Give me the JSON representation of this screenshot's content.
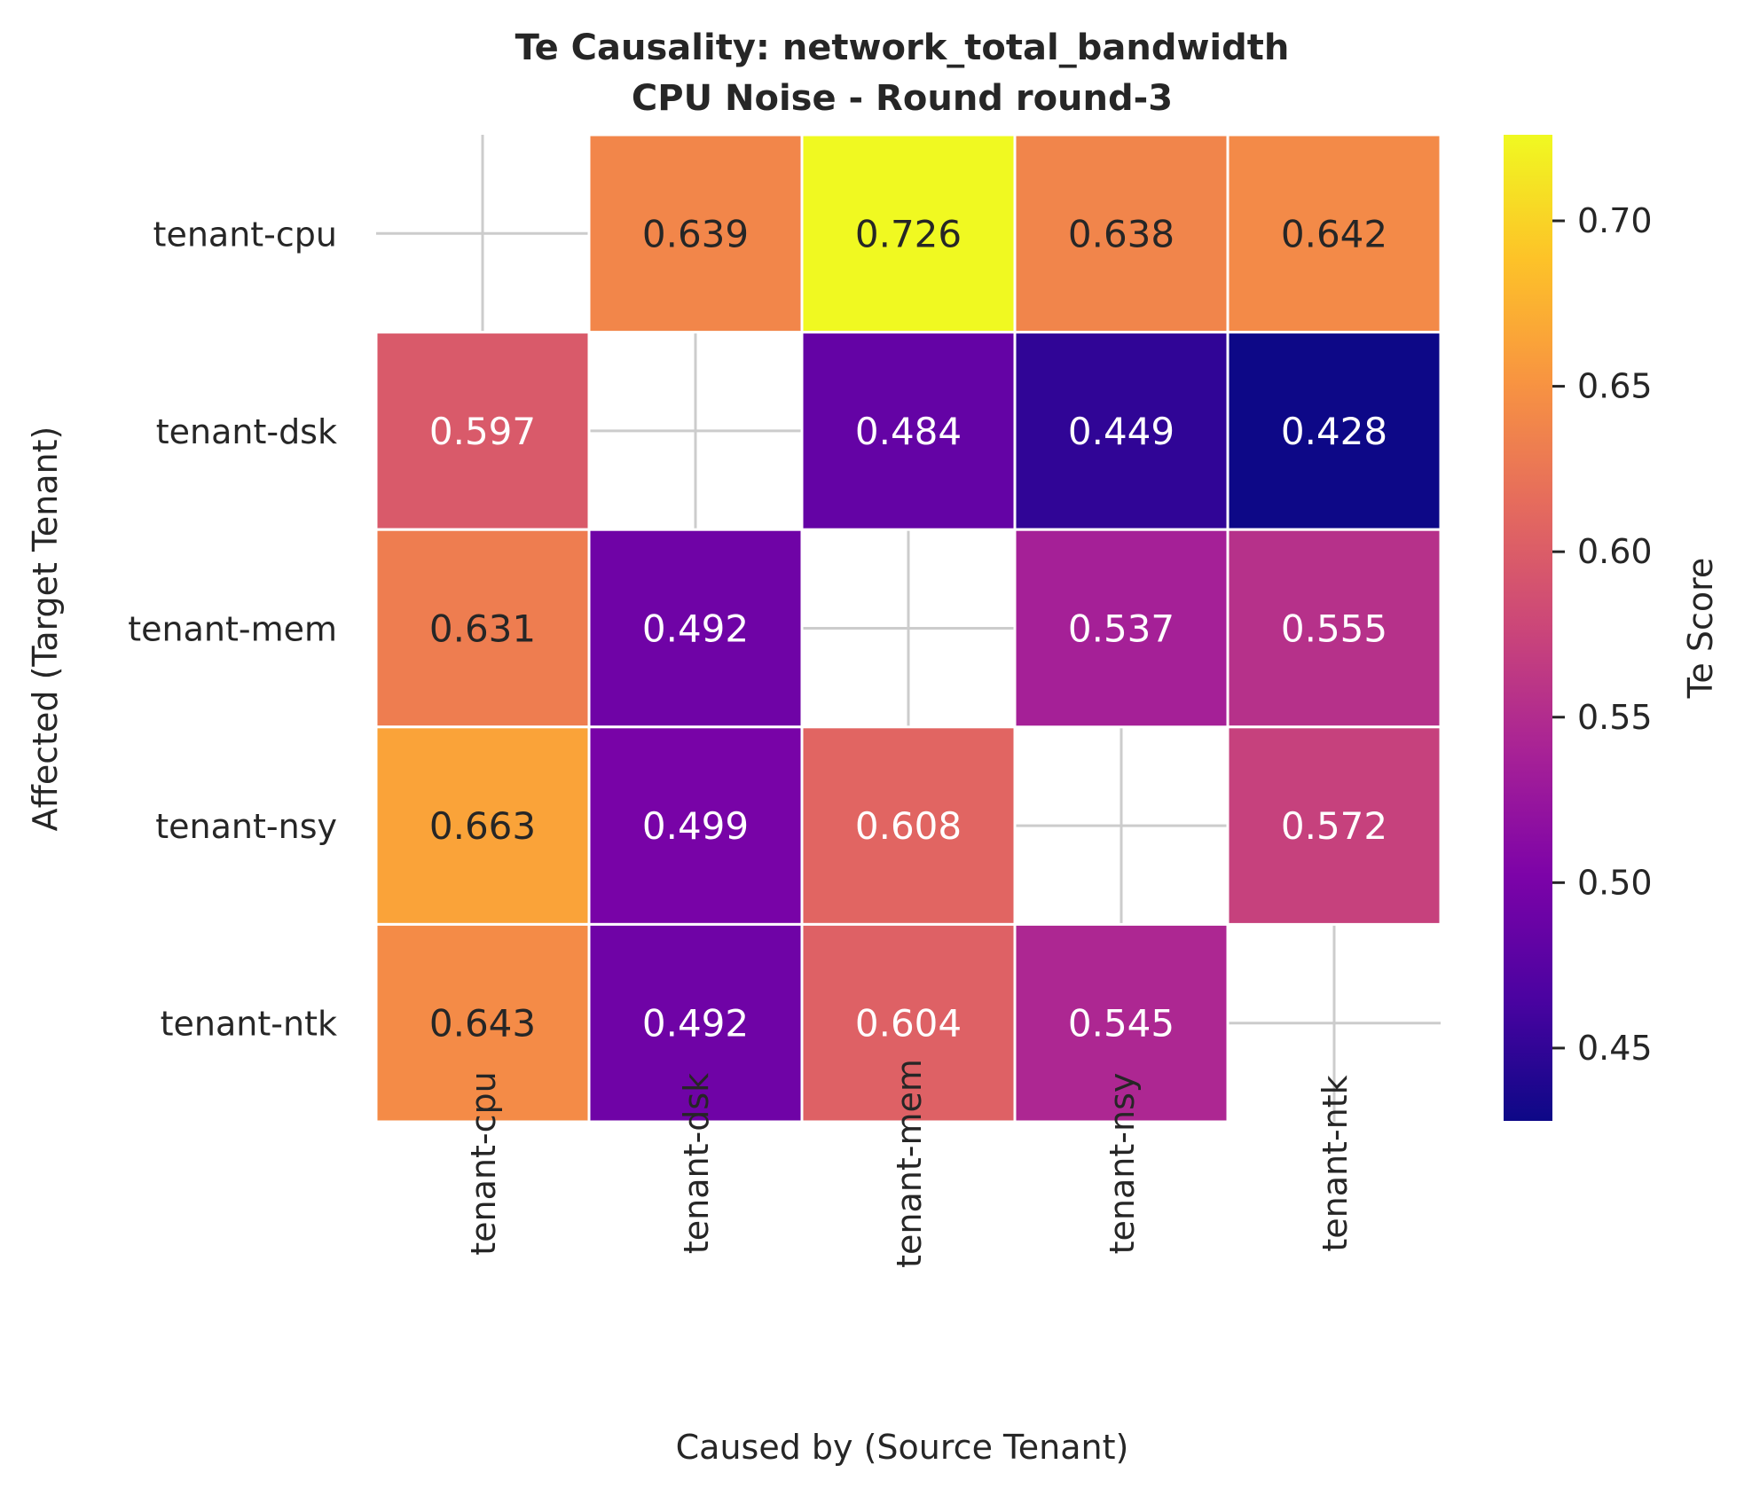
{
  "chart_data": {
    "type": "heatmap",
    "title_line1": "Te Causality: network_total_bandwidth",
    "title_line2": "CPU Noise - Round round-3",
    "xlabel": "Caused by (Source Tenant)",
    "ylabel": "Affected (Target Tenant)",
    "x_categories": [
      "tenant-cpu",
      "tenant-dsk",
      "tenant-mem",
      "tenant-nsy",
      "tenant-ntk"
    ],
    "y_categories": [
      "tenant-cpu",
      "tenant-dsk",
      "tenant-mem",
      "tenant-nsy",
      "tenant-ntk"
    ],
    "values": [
      [
        null,
        0.639,
        0.726,
        0.638,
        0.642
      ],
      [
        0.597,
        null,
        0.484,
        0.449,
        0.428
      ],
      [
        0.631,
        0.492,
        null,
        0.537,
        0.555
      ],
      [
        0.663,
        0.499,
        0.608,
        null,
        0.572
      ],
      [
        0.643,
        0.492,
        0.604,
        0.545,
        null
      ]
    ],
    "colorbar": {
      "label": "Te Score",
      "colormap": "plasma",
      "range": [
        0.428,
        0.726
      ],
      "ticks": [
        "0.45",
        "0.50",
        "0.55",
        "0.60",
        "0.65",
        "0.70"
      ]
    },
    "grid": true
  }
}
